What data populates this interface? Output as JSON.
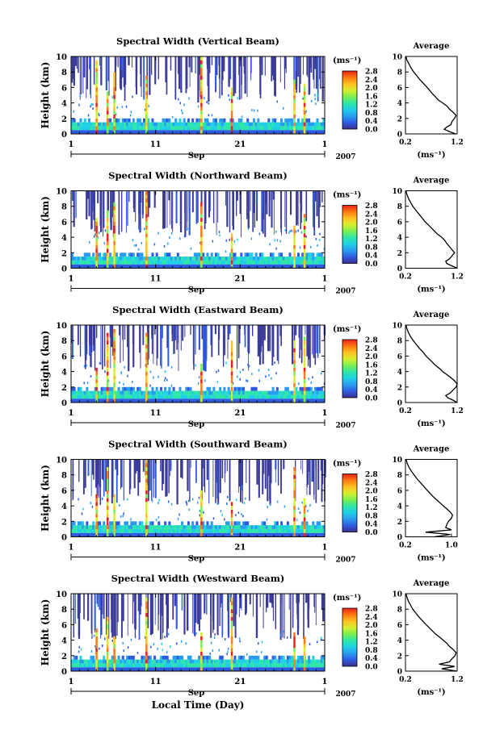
{
  "figure": {
    "bottom_xlabel": "Local Time (Day)",
    "colorbar": {
      "unit": "(ms⁻¹)",
      "ticks": [
        "0.0",
        "0.4",
        "0.8",
        "1.2",
        "1.6",
        "2.0",
        "2.4",
        "2.8"
      ],
      "stops": [
        "#3b2f8f",
        "#2f5be0",
        "#2a9cf0",
        "#1fd0e6",
        "#2ee6a8",
        "#7af050",
        "#d8ef2e",
        "#ffc020",
        "#ff7a10",
        "#e8201a"
      ]
    }
  },
  "chart_data": [
    {
      "type": "heatmap",
      "title": "Spectral Width (Vertical Beam)",
      "ylabel": "Height (km)",
      "ylim": [
        0,
        10
      ],
      "yticks": [
        "0",
        "2",
        "4",
        "6",
        "8",
        "10"
      ],
      "xticks": [
        "1",
        "11",
        "21",
        "1"
      ],
      "month_label": "Sep",
      "year_label": "2007",
      "colorbar_range": [
        0.0,
        2.8
      ],
      "strong_columns_day": [
        2.9,
        4.2,
        5.0,
        8.8,
        15.3,
        18.9,
        26.3,
        27.5
      ],
      "profile": {
        "title": "Average",
        "xlabel": "(ms⁻¹)",
        "xticks": [
          "0.2",
          "1.2"
        ],
        "xlim": [
          0.2,
          1.2
        ],
        "ylim": [
          0,
          10
        ],
        "yticks": [
          "0",
          "2",
          "4",
          "6",
          "8",
          "10"
        ],
        "height_km": [
          0,
          0.3,
          0.6,
          0.9,
          1.2,
          1.6,
          2.0,
          2.4,
          2.8,
          3.2,
          3.6,
          4.0,
          4.4,
          4.8,
          5.2,
          5.6,
          6.0,
          6.5,
          7.0,
          7.5,
          8.0,
          8.5,
          9.0,
          9.5,
          10.0
        ],
        "width_ms": [
          1.17,
          1.05,
          0.95,
          1.0,
          1.08,
          1.1,
          1.15,
          1.18,
          1.12,
          1.05,
          1.0,
          0.92,
          0.83,
          0.78,
          0.72,
          0.67,
          0.62,
          0.55,
          0.48,
          0.42,
          0.36,
          0.31,
          0.27,
          0.23,
          0.21
        ]
      }
    },
    {
      "type": "heatmap",
      "title": "Spectral Width (Northward Beam)",
      "ylabel": "Height (km)",
      "ylim": [
        0,
        10
      ],
      "yticks": [
        "0",
        "2",
        "4",
        "6",
        "8",
        "10"
      ],
      "xticks": [
        "1",
        "11",
        "21",
        "1"
      ],
      "month_label": "Sep",
      "year_label": "2007",
      "colorbar_range": [
        0.0,
        2.8
      ],
      "strong_columns_day": [
        2.9,
        4.2,
        5.0,
        8.8,
        15.3,
        18.9,
        26.3,
        27.5
      ],
      "profile": {
        "title": "Average",
        "xlabel": "(ms⁻¹)",
        "xticks": [
          "0.2",
          "1.2"
        ],
        "xlim": [
          0.2,
          1.2
        ],
        "ylim": [
          0,
          10
        ],
        "yticks": [
          "0",
          "2",
          "4",
          "6",
          "8",
          "10"
        ],
        "height_km": [
          0,
          0.3,
          0.6,
          0.9,
          1.2,
          1.6,
          2.0,
          2.4,
          2.8,
          3.2,
          3.6,
          4.0,
          4.4,
          4.8,
          5.2,
          5.6,
          6.0,
          6.5,
          7.0,
          7.5,
          8.0,
          8.5,
          9.0,
          9.5,
          10.0
        ],
        "width_ms": [
          1.2,
          1.1,
          1.0,
          0.98,
          1.05,
          1.1,
          1.15,
          1.1,
          1.05,
          1.0,
          0.96,
          0.9,
          0.82,
          0.76,
          0.7,
          0.64,
          0.58,
          0.52,
          0.46,
          0.4,
          0.34,
          0.3,
          0.26,
          0.23,
          0.21
        ]
      }
    },
    {
      "type": "heatmap",
      "title": "Spectral Width (Eastward Beam)",
      "ylabel": "Height (km)",
      "ylim": [
        0,
        10
      ],
      "yticks": [
        "0",
        "2",
        "4",
        "6",
        "8",
        "10"
      ],
      "xticks": [
        "1",
        "11",
        "21",
        "1"
      ],
      "month_label": "Sep",
      "year_label": "2007",
      "colorbar_range": [
        0.0,
        2.8
      ],
      "strong_columns_day": [
        2.9,
        4.2,
        5.0,
        8.8,
        15.3,
        18.9,
        26.3,
        27.5
      ],
      "profile": {
        "title": "Average",
        "xlabel": "(ms⁻¹)",
        "xticks": [
          "0.2",
          "1.2"
        ],
        "xlim": [
          0.2,
          1.2
        ],
        "ylim": [
          0,
          10
        ],
        "yticks": [
          "0",
          "2",
          "4",
          "6",
          "8",
          "10"
        ],
        "height_km": [
          0,
          0.3,
          0.6,
          0.9,
          1.2,
          1.6,
          2.0,
          2.4,
          2.8,
          3.2,
          3.6,
          4.0,
          4.4,
          4.8,
          5.2,
          5.6,
          6.0,
          6.5,
          7.0,
          7.5,
          8.0,
          8.5,
          9.0,
          9.5,
          10.0
        ],
        "width_ms": [
          1.22,
          1.12,
          1.02,
          0.98,
          1.06,
          1.12,
          1.18,
          1.2,
          1.15,
          1.08,
          1.0,
          0.92,
          0.86,
          0.78,
          0.72,
          0.66,
          0.6,
          0.54,
          0.47,
          0.41,
          0.35,
          0.3,
          0.26,
          0.23,
          0.21
        ]
      }
    },
    {
      "type": "heatmap",
      "title": "Spectral Width (Southward Beam)",
      "ylabel": "Height (km)",
      "ylim": [
        0,
        10
      ],
      "yticks": [
        "0",
        "2",
        "4",
        "6",
        "8",
        "10"
      ],
      "xticks": [
        "1",
        "11",
        "21",
        "1"
      ],
      "month_label": "Sep",
      "year_label": "2007",
      "colorbar_range": [
        0.0,
        2.8
      ],
      "strong_columns_day": [
        2.9,
        4.2,
        5.0,
        8.8,
        15.3,
        18.9,
        26.3,
        27.5
      ],
      "profile": {
        "title": "Average",
        "xlabel": "(ms⁻¹)",
        "xticks": [
          "0.2",
          "1.0"
        ],
        "xlim": [
          0.2,
          1.1
        ],
        "ylim": [
          0,
          10
        ],
        "yticks": [
          "0",
          "2",
          "4",
          "6",
          "8",
          "10"
        ],
        "height_km": [
          0,
          0.3,
          0.6,
          0.9,
          1.2,
          1.6,
          2.0,
          2.4,
          2.8,
          3.2,
          3.6,
          4.0,
          4.4,
          4.8,
          5.2,
          5.6,
          6.0,
          6.5,
          7.0,
          7.5,
          8.0,
          8.5,
          9.0,
          9.5,
          10.0
        ],
        "width_ms": [
          0.7,
          0.98,
          0.55,
          1.0,
          0.9,
          0.92,
          0.95,
          1.0,
          1.02,
          0.98,
          0.92,
          0.86,
          0.8,
          0.74,
          0.68,
          0.63,
          0.58,
          0.52,
          0.46,
          0.4,
          0.35,
          0.3,
          0.26,
          0.23,
          0.21
        ]
      }
    },
    {
      "type": "heatmap",
      "title": "Spectral Width (Westward Beam)",
      "ylabel": "Height (km)",
      "ylim": [
        0,
        10
      ],
      "yticks": [
        "0",
        "2",
        "4",
        "6",
        "8",
        "10"
      ],
      "xticks": [
        "1",
        "11",
        "21",
        "1"
      ],
      "month_label": "Sep",
      "year_label": "2007",
      "colorbar_range": [
        0.0,
        2.8
      ],
      "strong_columns_day": [
        2.9,
        4.2,
        5.0,
        8.8,
        15.3,
        18.9,
        26.3,
        27.5
      ],
      "profile": {
        "title": "Average",
        "xlabel": "(ms⁻¹)",
        "xticks": [
          "0.2",
          "1.2"
        ],
        "xlim": [
          0.2,
          1.2
        ],
        "ylim": [
          0,
          10
        ],
        "yticks": [
          "0",
          "2",
          "4",
          "6",
          "8",
          "10"
        ],
        "height_km": [
          0,
          0.3,
          0.6,
          0.9,
          1.2,
          1.6,
          2.0,
          2.4,
          2.8,
          3.2,
          3.6,
          4.0,
          4.4,
          4.8,
          5.2,
          5.6,
          6.0,
          6.5,
          7.0,
          7.5,
          8.0,
          8.5,
          9.0,
          9.5,
          10.0
        ],
        "width_ms": [
          1.2,
          0.9,
          1.15,
          0.85,
          1.05,
          1.1,
          1.16,
          1.18,
          1.12,
          1.05,
          1.0,
          0.93,
          0.86,
          0.78,
          0.72,
          0.66,
          0.6,
          0.53,
          0.46,
          0.4,
          0.34,
          0.3,
          0.26,
          0.23,
          0.21
        ]
      }
    }
  ]
}
